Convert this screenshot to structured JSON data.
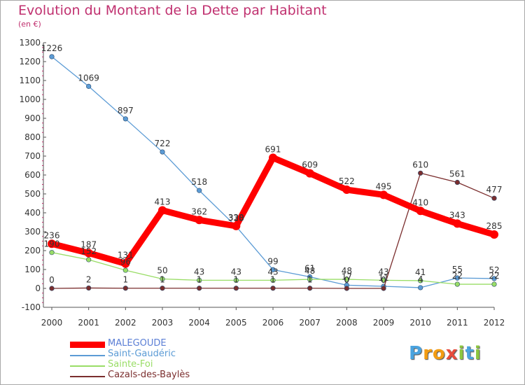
{
  "chart_data": {
    "type": "line",
    "title": "Evolution du Montant de la Dette par Habitant",
    "unit_label": "(en €)",
    "x": [
      "2000",
      "2001",
      "2002",
      "2003",
      "2004",
      "2005",
      "2006",
      "2007",
      "2008",
      "2009",
      "2010",
      "2011",
      "2012"
    ],
    "ylim": [
      -100,
      1300
    ],
    "yticks": [
      -100,
      0,
      100,
      200,
      300,
      400,
      500,
      600,
      700,
      800,
      900,
      1000,
      1100,
      1200,
      1300
    ],
    "grid": false,
    "legend_position": "bottom-left",
    "series": [
      {
        "name": "MALEGOUDE",
        "color": "#ff0000",
        "values": [
          236,
          187,
          131,
          413,
          362,
          330,
          691,
          609,
          522,
          495,
          410,
          343,
          285
        ]
      },
      {
        "name": "Saint-Gaudéric",
        "color": "#5b9bd5",
        "values": [
          1226,
          1069,
          897,
          722,
          518,
          328,
          99,
          61,
          17,
          11,
          4,
          55,
          52
        ]
      },
      {
        "name": "Sainte-Foi",
        "color": "#99dd66",
        "values": [
          190,
          152,
          96,
          50,
          43,
          43,
          43,
          48,
          48,
          43,
          41,
          22,
          22
        ]
      },
      {
        "name": "Cazals-des-Baylès",
        "color": "#7b2e2e",
        "values": [
          0,
          2,
          1,
          1,
          1,
          1,
          1,
          1,
          0,
          0,
          610,
          561,
          477
        ]
      }
    ]
  },
  "logo": {
    "letters": [
      "P",
      "r",
      "o",
      "x",
      "i",
      "t",
      "i"
    ],
    "colors": [
      "#4aa3df",
      "#f39c12",
      "#f39c12",
      "#e74c3c",
      "#8cc63f",
      "#4aa3df",
      "#8cc63f"
    ]
  }
}
